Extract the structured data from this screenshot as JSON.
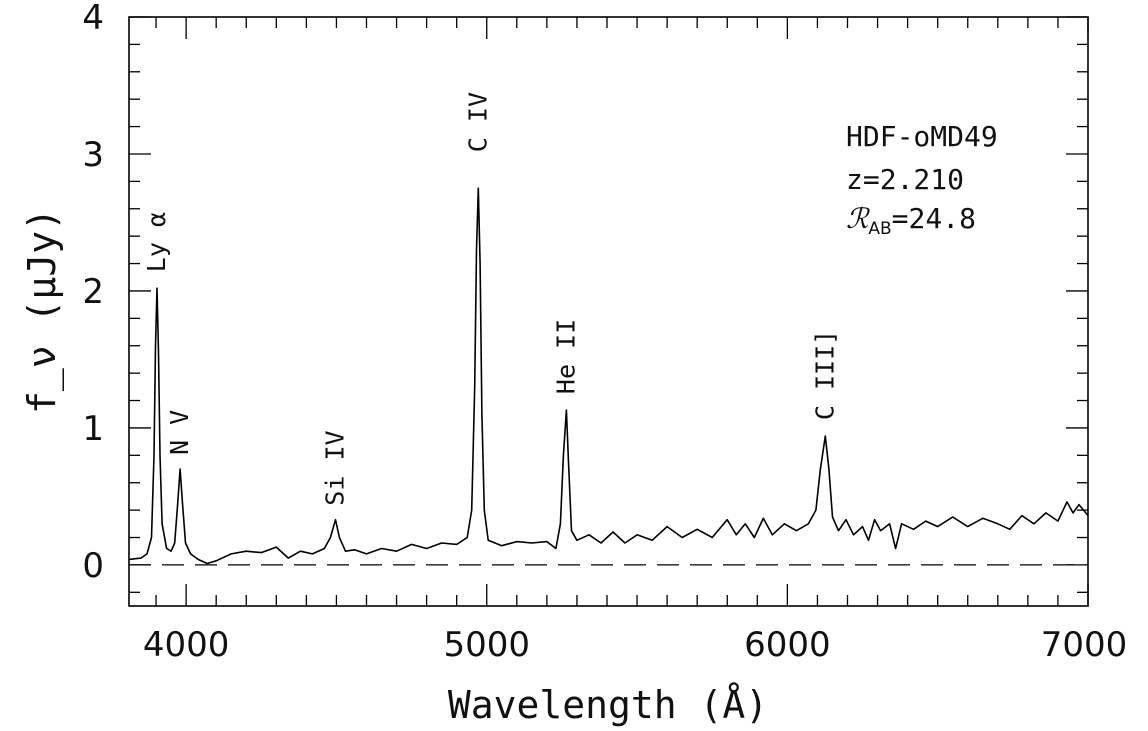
{
  "chart_data": {
    "type": "line",
    "xlabel": "Wavelength (Å)",
    "ylabel": "f_ν (μJy)",
    "xlim": [
      3810,
      7000
    ],
    "ylim": [
      -0.3,
      4
    ],
    "xticks": [
      4000,
      5000,
      6000,
      7000
    ],
    "xtick_labels": [
      "4000",
      "5000",
      "6000",
      "7000"
    ],
    "yticks": [
      0,
      1,
      2,
      3,
      4
    ],
    "ytick_labels": [
      "0",
      "1",
      "2",
      "3",
      "4"
    ],
    "reference_line": {
      "y": 0,
      "style": "dashed"
    },
    "annotations": {
      "object": "HDF-oMD49",
      "redshift": "z=2.210",
      "magnitude_symbol": "ℛ",
      "magnitude_subscript": "AB",
      "magnitude_value": "=24.8"
    },
    "emission_lines": [
      {
        "label": "Ly α",
        "wavelength": 3903,
        "peak": 2.02
      },
      {
        "label": "N V",
        "wavelength": 3980,
        "peak": 0.7
      },
      {
        "label": "Si IV",
        "wavelength": 4497,
        "peak": 0.33
      },
      {
        "label": "C IV",
        "wavelength": 4972,
        "peak": 2.75
      },
      {
        "label": "He II",
        "wavelength": 5265,
        "peak": 1.13
      },
      {
        "label": "C III]",
        "wavelength": 6126,
        "peak": 0.94
      }
    ],
    "series": [
      {
        "values": [
          [
            3810,
            0.04
          ],
          [
            3850,
            0.05
          ],
          [
            3870,
            0.08
          ],
          [
            3885,
            0.2
          ],
          [
            3893,
            0.8
          ],
          [
            3898,
            1.6
          ],
          [
            3903,
            2.02
          ],
          [
            3908,
            1.55
          ],
          [
            3913,
            0.8
          ],
          [
            3920,
            0.3
          ],
          [
            3935,
            0.12
          ],
          [
            3950,
            0.1
          ],
          [
            3962,
            0.16
          ],
          [
            3972,
            0.45
          ],
          [
            3980,
            0.7
          ],
          [
            3988,
            0.45
          ],
          [
            3998,
            0.16
          ],
          [
            4015,
            0.08
          ],
          [
            4040,
            0.04
          ],
          [
            4070,
            0.01
          ],
          [
            4100,
            0.03
          ],
          [
            4150,
            0.08
          ],
          [
            4200,
            0.1
          ],
          [
            4250,
            0.09
          ],
          [
            4300,
            0.13
          ],
          [
            4340,
            0.05
          ],
          [
            4380,
            0.1
          ],
          [
            4420,
            0.08
          ],
          [
            4460,
            0.12
          ],
          [
            4480,
            0.2
          ],
          [
            4497,
            0.33
          ],
          [
            4510,
            0.2
          ],
          [
            4530,
            0.1
          ],
          [
            4560,
            0.11
          ],
          [
            4600,
            0.08
          ],
          [
            4650,
            0.12
          ],
          [
            4700,
            0.1
          ],
          [
            4750,
            0.15
          ],
          [
            4800,
            0.12
          ],
          [
            4850,
            0.16
          ],
          [
            4900,
            0.15
          ],
          [
            4935,
            0.2
          ],
          [
            4950,
            0.4
          ],
          [
            4960,
            1.3
          ],
          [
            4966,
            2.3
          ],
          [
            4972,
            2.75
          ],
          [
            4978,
            2.2
          ],
          [
            4984,
            1.1
          ],
          [
            4992,
            0.4
          ],
          [
            5005,
            0.18
          ],
          [
            5050,
            0.14
          ],
          [
            5100,
            0.17
          ],
          [
            5150,
            0.16
          ],
          [
            5200,
            0.17
          ],
          [
            5230,
            0.12
          ],
          [
            5245,
            0.3
          ],
          [
            5255,
            0.8
          ],
          [
            5265,
            1.13
          ],
          [
            5272,
            0.75
          ],
          [
            5282,
            0.25
          ],
          [
            5300,
            0.18
          ],
          [
            5340,
            0.22
          ],
          [
            5380,
            0.16
          ],
          [
            5420,
            0.24
          ],
          [
            5460,
            0.16
          ],
          [
            5500,
            0.22
          ],
          [
            5550,
            0.18
          ],
          [
            5600,
            0.28
          ],
          [
            5650,
            0.2
          ],
          [
            5700,
            0.26
          ],
          [
            5750,
            0.2
          ],
          [
            5800,
            0.33
          ],
          [
            5830,
            0.22
          ],
          [
            5860,
            0.3
          ],
          [
            5890,
            0.2
          ],
          [
            5920,
            0.34
          ],
          [
            5950,
            0.22
          ],
          [
            5990,
            0.3
          ],
          [
            6030,
            0.25
          ],
          [
            6070,
            0.3
          ],
          [
            6095,
            0.4
          ],
          [
            6110,
            0.7
          ],
          [
            6126,
            0.94
          ],
          [
            6138,
            0.7
          ],
          [
            6150,
            0.35
          ],
          [
            6170,
            0.25
          ],
          [
            6195,
            0.33
          ],
          [
            6220,
            0.22
          ],
          [
            6250,
            0.28
          ],
          [
            6270,
            0.18
          ],
          [
            6290,
            0.33
          ],
          [
            6310,
            0.25
          ],
          [
            6340,
            0.3
          ],
          [
            6360,
            0.12
          ],
          [
            6380,
            0.3
          ],
          [
            6420,
            0.26
          ],
          [
            6460,
            0.32
          ],
          [
            6500,
            0.28
          ],
          [
            6550,
            0.35
          ],
          [
            6600,
            0.28
          ],
          [
            6650,
            0.34
          ],
          [
            6700,
            0.3
          ],
          [
            6740,
            0.26
          ],
          [
            6780,
            0.36
          ],
          [
            6820,
            0.3
          ],
          [
            6860,
            0.38
          ],
          [
            6900,
            0.32
          ],
          [
            6930,
            0.46
          ],
          [
            6950,
            0.38
          ],
          [
            6970,
            0.44
          ],
          [
            7000,
            0.36
          ]
        ]
      }
    ]
  }
}
